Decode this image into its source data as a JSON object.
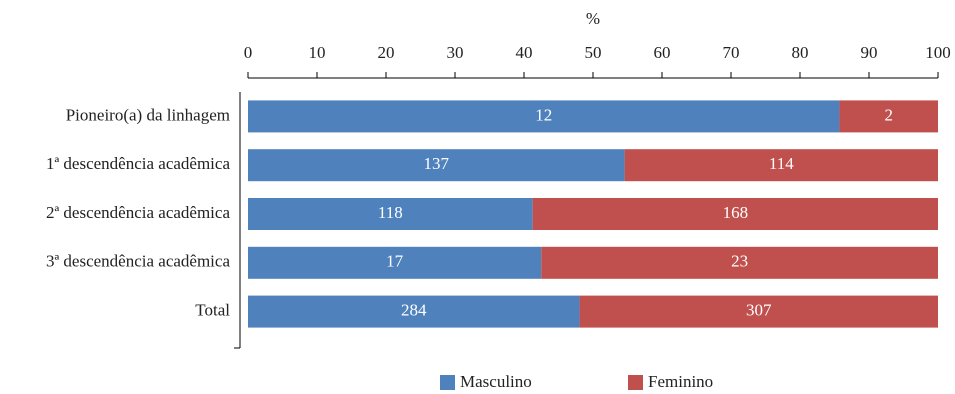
{
  "chart_data": {
    "type": "bar",
    "orientation": "horizontal",
    "stacked": "percent",
    "x_label": "%",
    "categories": [
      "Pioneiro(a) da linhagem",
      "1ª descendência acadêmica",
      "2ª descendência acadêmica",
      "3ª descendência acadêmica",
      "Total"
    ],
    "series": [
      {
        "name": "Masculino",
        "color": "#4f81bd",
        "values": [
          12,
          137,
          118,
          17,
          284
        ]
      },
      {
        "name": "Feminino",
        "color": "#c0504d",
        "values": [
          2,
          114,
          168,
          23,
          307
        ]
      }
    ],
    "xlim": [
      0,
      100
    ],
    "xticks": [
      0,
      10,
      20,
      30,
      40,
      50,
      60,
      70,
      80,
      90,
      100
    ],
    "legend": "bottom"
  }
}
